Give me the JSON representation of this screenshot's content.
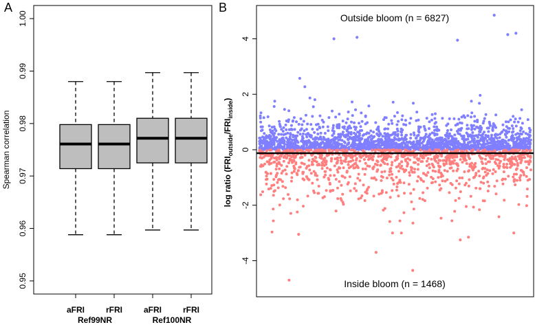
{
  "chart_data": [
    {
      "panel_label": "A",
      "type": "box",
      "title": "",
      "ylabel": "Spearman correlation",
      "ylim": [
        0.9475,
        1.0025
      ],
      "yticks": [
        "0.95",
        "0.96",
        "0.97",
        "0.98",
        "0.99",
        "1.00"
      ],
      "ytick_values": [
        0.95,
        0.96,
        0.97,
        0.98,
        0.99,
        1.0
      ],
      "categories": [
        "aFRI",
        "rFRI",
        "aFRI",
        "rFRI"
      ],
      "groups": [
        {
          "label": "Ref99NR"
        },
        {
          "label": "Ref100NR"
        }
      ],
      "boxes": [
        {
          "min": 0.9588,
          "q1": 0.9714,
          "median": 0.9761,
          "q3": 0.9798,
          "max": 0.988
        },
        {
          "min": 0.9588,
          "q1": 0.9714,
          "median": 0.9761,
          "q3": 0.9798,
          "max": 0.988
        },
        {
          "min": 0.9597,
          "q1": 0.9725,
          "median": 0.9772,
          "q3": 0.981,
          "max": 0.9897
        },
        {
          "min": 0.9597,
          "q1": 0.9725,
          "median": 0.9772,
          "q3": 0.981,
          "max": 0.9897
        }
      ],
      "box_color": "#bebebe"
    },
    {
      "panel_label": "B",
      "type": "scatter",
      "ylabel_parts": {
        "pre": "log ratio (FRI",
        "sub1": "outside",
        "mid": "/FRI",
        "sub2": "inside",
        "post": ")"
      },
      "ylim": [
        -5.3,
        5.2
      ],
      "yticks": [
        "-4",
        "-2",
        "0",
        "2",
        "4"
      ],
      "ytick_values": [
        -4,
        -2,
        0,
        2,
        4
      ],
      "reference_line": 0,
      "outside": {
        "label": "Outside bloom (n = 6827)",
        "n": 6827,
        "color": "#7f7fff",
        "label_color": "#3333aa"
      },
      "inside": {
        "label": "Inside bloom (n = 1468)",
        "n": 1468,
        "color": "#ff7f7f",
        "label_color": "#aa2222"
      },
      "notable_points": [
        {
          "x": 0.865,
          "y": 4.85,
          "group": "outside"
        },
        {
          "x": 0.945,
          "y": 4.2,
          "group": "outside"
        },
        {
          "x": 0.915,
          "y": 4.15,
          "group": "outside"
        },
        {
          "x": 0.36,
          "y": 4.05,
          "group": "outside"
        },
        {
          "x": 0.275,
          "y": 4.0,
          "group": "outside"
        },
        {
          "x": 0.73,
          "y": 3.95,
          "group": "outside"
        },
        {
          "x": 0.11,
          "y": -4.7,
          "group": "inside"
        },
        {
          "x": 0.565,
          "y": -4.35,
          "group": "inside"
        },
        {
          "x": 0.43,
          "y": -3.7,
          "group": "inside"
        },
        {
          "x": 0.74,
          "y": -3.25,
          "group": "inside"
        },
        {
          "x": 0.77,
          "y": -3.15,
          "group": "inside"
        },
        {
          "x": 0.145,
          "y": -3.05,
          "group": "inside"
        }
      ]
    }
  ]
}
